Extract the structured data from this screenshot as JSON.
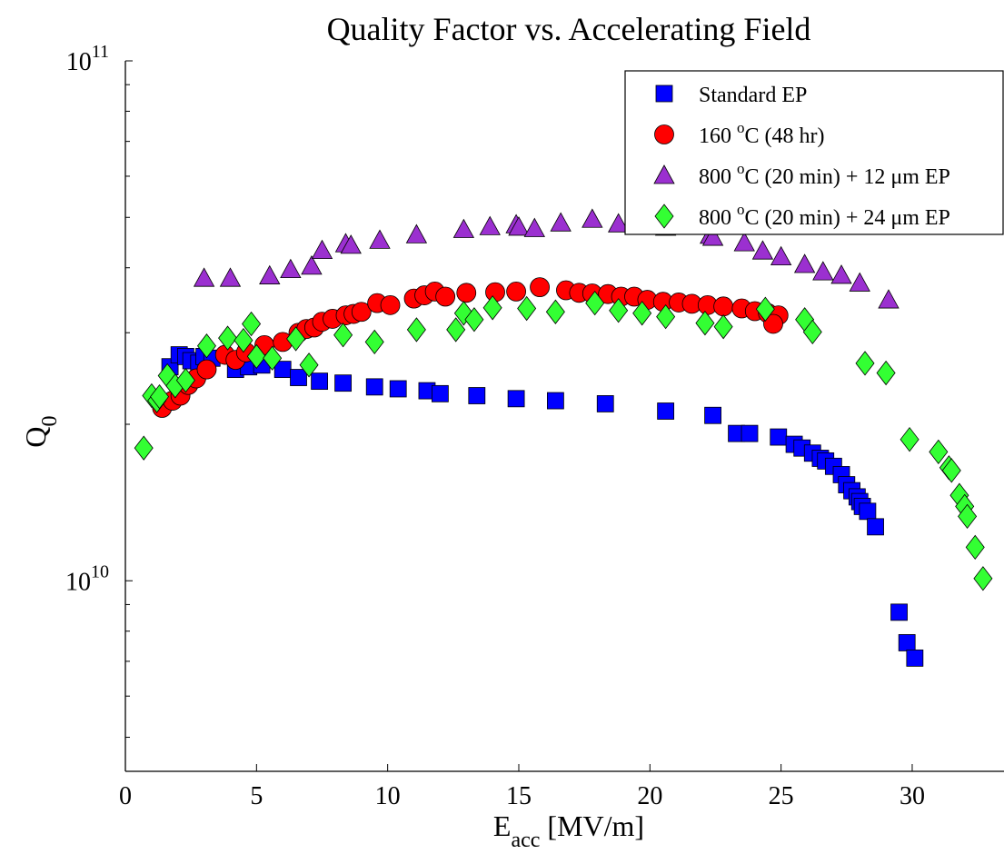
{
  "chart_data": {
    "type": "scatter",
    "title": "Quality Factor vs. Accelerating Field",
    "xlabel": {
      "main": "E",
      "sub": "acc",
      "unit": " [MV/m]"
    },
    "ylabel": {
      "main": "Q",
      "sub": "0"
    },
    "xlim": [
      0,
      33.5
    ],
    "ylim": [
      4300000000.0,
      100000000000.0
    ],
    "yscale": "log",
    "xticks": [
      0,
      5,
      10,
      15,
      20,
      25,
      30
    ],
    "yticks": [
      {
        "value": 10000000000.0,
        "base": "10",
        "exp": "10"
      },
      {
        "value": 100000000000.0,
        "base": "10",
        "exp": "11"
      }
    ],
    "legend_position": "top-right",
    "series": [
      {
        "name": {
          "pre": "Standard EP",
          "sup": "",
          "post": ""
        },
        "marker": "square",
        "color": "#0000ff",
        "points": [
          [
            1.7,
            25800000000.0
          ],
          [
            2.05,
            27200000000.0
          ],
          [
            2.3,
            27000000000.0
          ],
          [
            2.5,
            26500000000.0
          ],
          [
            2.8,
            26200000000.0
          ],
          [
            3.0,
            27000000000.0
          ],
          [
            3.3,
            26800000000.0
          ],
          [
            4.2,
            25500000000.0
          ],
          [
            4.7,
            25800000000.0
          ],
          [
            5.2,
            26000000000.0
          ],
          [
            6.0,
            25500000000.0
          ],
          [
            6.6,
            24600000000.0
          ],
          [
            7.4,
            24200000000.0
          ],
          [
            8.3,
            24000000000.0
          ],
          [
            9.5,
            23600000000.0
          ],
          [
            10.4,
            23400000000.0
          ],
          [
            11.5,
            23200000000.0
          ],
          [
            12.0,
            22900000000.0
          ],
          [
            13.4,
            22700000000.0
          ],
          [
            14.9,
            22400000000.0
          ],
          [
            16.4,
            22200000000.0
          ],
          [
            18.3,
            21900000000.0
          ],
          [
            20.6,
            21200000000.0
          ],
          [
            22.4,
            20800000000.0
          ],
          [
            23.3,
            19200000000.0
          ],
          [
            23.8,
            19200000000.0
          ],
          [
            24.9,
            18900000000.0
          ],
          [
            25.5,
            18300000000.0
          ],
          [
            25.8,
            18000000000.0
          ],
          [
            26.2,
            17600000000.0
          ],
          [
            26.5,
            17200000000.0
          ],
          [
            26.7,
            17000000000.0
          ],
          [
            27.0,
            16600000000.0
          ],
          [
            27.3,
            16000000000.0
          ],
          [
            27.5,
            15300000000.0
          ],
          [
            27.7,
            14900000000.0
          ],
          [
            27.9,
            14500000000.0
          ],
          [
            28.0,
            14200000000.0
          ],
          [
            28.1,
            13900000000.0
          ],
          [
            28.3,
            13600000000.0
          ],
          [
            28.6,
            12700000000.0
          ],
          [
            29.5,
            8700000000.0
          ],
          [
            29.8,
            7600000000.0
          ],
          [
            30.1,
            7100000000.0
          ]
        ]
      },
      {
        "name": {
          "pre": "160 ",
          "sup": "o",
          "post": "C (48 hr)"
        },
        "marker": "circle",
        "color": "#ff0000",
        "points": [
          [
            1.4,
            21500000000.0
          ],
          [
            1.8,
            22200000000.0
          ],
          [
            2.1,
            22700000000.0
          ],
          [
            2.4,
            23800000000.0
          ],
          [
            2.7,
            24500000000.0
          ],
          [
            3.1,
            25500000000.0
          ],
          [
            3.8,
            27200000000.0
          ],
          [
            4.2,
            26600000000.0
          ],
          [
            4.6,
            27500000000.0
          ],
          [
            5.3,
            28400000000.0
          ],
          [
            6.0,
            28800000000.0
          ],
          [
            6.6,
            30000000000.0
          ],
          [
            6.9,
            30500000000.0
          ],
          [
            7.2,
            30700000000.0
          ],
          [
            7.5,
            31500000000.0
          ],
          [
            7.9,
            31900000000.0
          ],
          [
            8.4,
            32400000000.0
          ],
          [
            8.7,
            32600000000.0
          ],
          [
            9.0,
            32900000000.0
          ],
          [
            9.6,
            34200000000.0
          ],
          [
            10.1,
            33900000000.0
          ],
          [
            11.0,
            34900000000.0
          ],
          [
            11.4,
            35400000000.0
          ],
          [
            11.8,
            36000000000.0
          ],
          [
            12.2,
            35200000000.0
          ],
          [
            13.0,
            35800000000.0
          ],
          [
            14.1,
            35900000000.0
          ],
          [
            14.9,
            36000000000.0
          ],
          [
            15.8,
            36700000000.0
          ],
          [
            16.8,
            36200000000.0
          ],
          [
            17.3,
            35800000000.0
          ],
          [
            17.8,
            35700000000.0
          ],
          [
            18.4,
            35600000000.0
          ],
          [
            18.9,
            35200000000.0
          ],
          [
            19.4,
            35200000000.0
          ],
          [
            19.9,
            34700000000.0
          ],
          [
            20.5,
            34400000000.0
          ],
          [
            21.1,
            34300000000.0
          ],
          [
            21.6,
            34100000000.0
          ],
          [
            22.2,
            33900000000.0
          ],
          [
            22.8,
            33700000000.0
          ],
          [
            23.5,
            33400000000.0
          ],
          [
            24.0,
            33000000000.0
          ],
          [
            24.5,
            32700000000.0
          ],
          [
            24.9,
            32400000000.0
          ],
          [
            24.7,
            31200000000.0
          ]
        ]
      },
      {
        "name": {
          "pre": "800 ",
          "sup": "o",
          "post": "C (20 min) + 12 μm EP"
        },
        "marker": "triangle",
        "color": "#9b30d0",
        "points": [
          [
            3.0,
            38200000000.0
          ],
          [
            4.0,
            38200000000.0
          ],
          [
            5.5,
            38600000000.0
          ],
          [
            6.3,
            39700000000.0
          ],
          [
            7.1,
            40300000000.0
          ],
          [
            7.5,
            43200000000.0
          ],
          [
            8.4,
            44500000000.0
          ],
          [
            8.6,
            44200000000.0
          ],
          [
            9.7,
            45200000000.0
          ],
          [
            11.1,
            46300000000.0
          ],
          [
            12.9,
            47400000000.0
          ],
          [
            13.9,
            48000000000.0
          ],
          [
            14.9,
            48400000000.0
          ],
          [
            15.0,
            47900000000.0
          ],
          [
            15.6,
            47600000000.0
          ],
          [
            16.6,
            48800000000.0
          ],
          [
            17.8,
            49600000000.0
          ],
          [
            18.8,
            48600000000.0
          ],
          [
            20.0,
            49600000000.0
          ],
          [
            20.6,
            47900000000.0
          ],
          [
            22.1,
            48600000000.0
          ],
          [
            22.3,
            46200000000.0
          ],
          [
            22.4,
            45800000000.0
          ],
          [
            23.6,
            44700000000.0
          ],
          [
            24.3,
            43100000000.0
          ],
          [
            25.0,
            42000000000.0
          ],
          [
            25.9,
            40600000000.0
          ],
          [
            26.6,
            39300000000.0
          ],
          [
            27.3,
            38700000000.0
          ],
          [
            28.0,
            37400000000.0
          ],
          [
            29.1,
            34700000000.0
          ]
        ]
      },
      {
        "name": {
          "pre": "800 ",
          "sup": "o",
          "post": "C (20 min) + 24 μm EP"
        },
        "marker": "diamond",
        "color": "#33ff33",
        "points": [
          [
            0.7,
            18000000000.0
          ],
          [
            1.0,
            22700000000.0
          ],
          [
            1.2,
            22200000000.0
          ],
          [
            1.3,
            22600000000.0
          ],
          [
            1.6,
            24800000000.0
          ],
          [
            1.9,
            23700000000.0
          ],
          [
            2.3,
            24300000000.0
          ],
          [
            3.1,
            28300000000.0
          ],
          [
            3.9,
            29300000000.0
          ],
          [
            4.5,
            29000000000.0
          ],
          [
            4.8,
            31200000000.0
          ],
          [
            5.0,
            27000000000.0
          ],
          [
            5.6,
            26800000000.0
          ],
          [
            6.5,
            29200000000.0
          ],
          [
            7.0,
            26000000000.0
          ],
          [
            8.3,
            29700000000.0
          ],
          [
            9.5,
            28800000000.0
          ],
          [
            11.1,
            30400000000.0
          ],
          [
            12.6,
            30400000000.0
          ],
          [
            12.9,
            32700000000.0
          ],
          [
            13.3,
            31800000000.0
          ],
          [
            14.0,
            33500000000.0
          ],
          [
            15.3,
            33400000000.0
          ],
          [
            16.4,
            32900000000.0
          ],
          [
            17.9,
            34200000000.0
          ],
          [
            18.8,
            33100000000.0
          ],
          [
            19.7,
            32700000000.0
          ],
          [
            20.6,
            32200000000.0
          ],
          [
            22.1,
            31300000000.0
          ],
          [
            22.8,
            30800000000.0
          ],
          [
            24.4,
            33300000000.0
          ],
          [
            25.9,
            31800000000.0
          ],
          [
            26.2,
            30100000000.0
          ],
          [
            28.2,
            26200000000.0
          ],
          [
            29.0,
            25100000000.0
          ],
          [
            29.9,
            18700000000.0
          ],
          [
            31.0,
            17700000000.0
          ],
          [
            31.4,
            16500000000.0
          ],
          [
            31.5,
            16300000000.0
          ],
          [
            31.8,
            14600000000.0
          ],
          [
            32.0,
            13900000000.0
          ],
          [
            32.1,
            13300000000.0
          ],
          [
            32.4,
            11600000000.0
          ],
          [
            32.7,
            10100000000.0
          ]
        ]
      }
    ]
  }
}
